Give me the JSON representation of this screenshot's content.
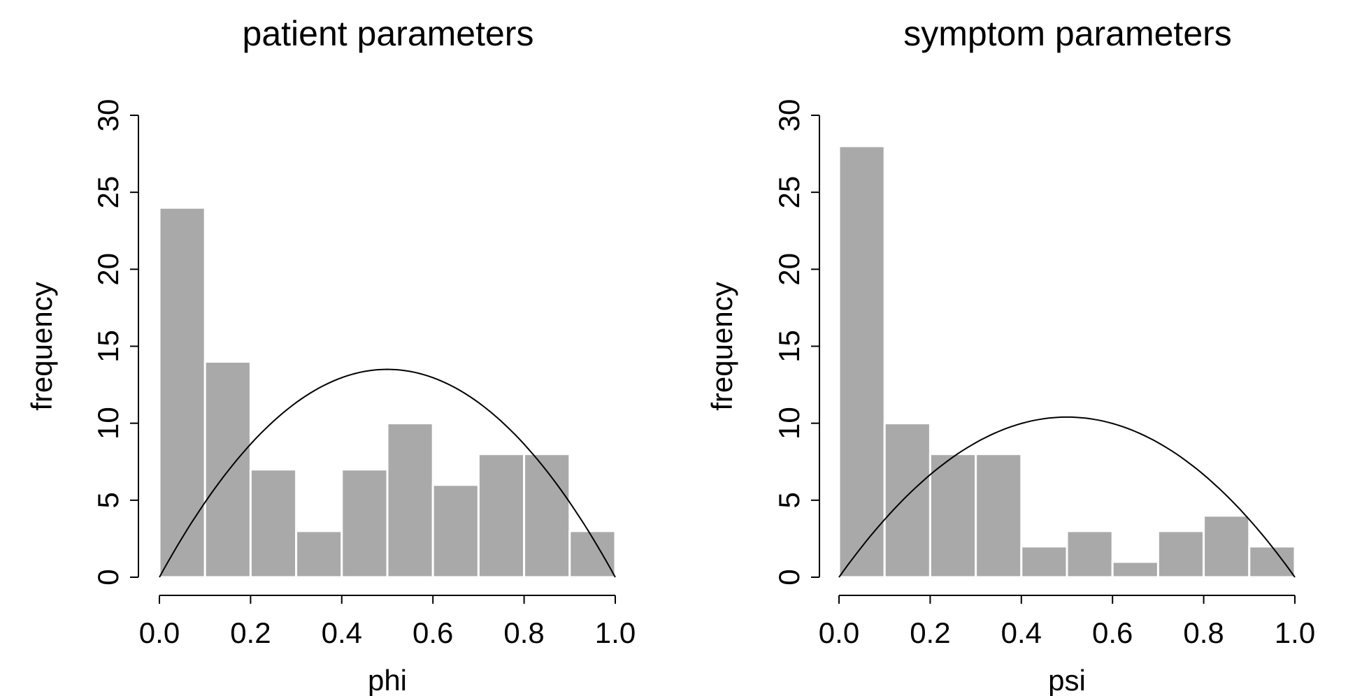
{
  "chart_data": [
    {
      "type": "bar",
      "title": "patient parameters",
      "xlabel": "phi",
      "ylabel": "frequency",
      "bin_edges": [
        0.0,
        0.1,
        0.2,
        0.3,
        0.4,
        0.5,
        0.6,
        0.7,
        0.8,
        0.9,
        1.0
      ],
      "values": [
        24,
        14,
        7,
        3,
        7,
        10,
        6,
        8,
        8,
        3
      ],
      "xlim": [
        0.0,
        1.0
      ],
      "ylim": [
        0,
        30
      ],
      "xticks": [
        "0.0",
        "0.2",
        "0.4",
        "0.6",
        "0.8",
        "1.0"
      ],
      "yticks": [
        "0",
        "5",
        "10",
        "15",
        "20",
        "25",
        "30"
      ],
      "bar_color": "#a9a9a9",
      "overlay_curve": {
        "type": "line",
        "shape": "parabola",
        "peak_x": 0.5,
        "peak_y": 13.5,
        "zero_at": [
          0.0,
          1.0
        ]
      }
    },
    {
      "type": "bar",
      "title": "symptom parameters",
      "xlabel": "psi",
      "ylabel": "frequency",
      "bin_edges": [
        0.0,
        0.1,
        0.2,
        0.3,
        0.4,
        0.5,
        0.6,
        0.7,
        0.8,
        0.9,
        1.0
      ],
      "values": [
        28,
        10,
        8,
        8,
        2,
        3,
        1,
        3,
        4,
        2
      ],
      "xlim": [
        0.0,
        1.0
      ],
      "ylim": [
        0,
        30
      ],
      "xticks": [
        "0.0",
        "0.2",
        "0.4",
        "0.6",
        "0.8",
        "1.0"
      ],
      "yticks": [
        "0",
        "5",
        "10",
        "15",
        "20",
        "25",
        "30"
      ],
      "bar_color": "#a9a9a9",
      "overlay_curve": {
        "type": "line",
        "shape": "parabola",
        "peak_x": 0.5,
        "peak_y": 10.4,
        "zero_at": [
          0.0,
          1.0
        ]
      }
    }
  ]
}
